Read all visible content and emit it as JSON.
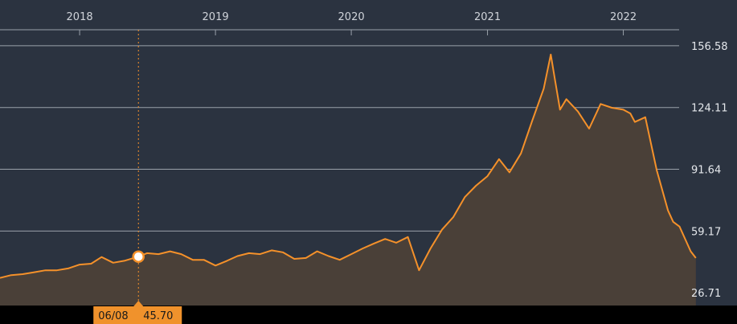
{
  "chart_data": {
    "type": "area",
    "title": "",
    "xlabel": "",
    "ylabel": "",
    "x_range": [
      "2017-06-01",
      "2022-05-31"
    ],
    "ylim": [
      20,
      165
    ],
    "grid": true,
    "x_ticks": [
      {
        "label": "2018",
        "date": "2018-01-01"
      },
      {
        "label": "2019",
        "date": "2019-01-01"
      },
      {
        "label": "2020",
        "date": "2020-01-01"
      },
      {
        "label": "2021",
        "date": "2021-01-01"
      },
      {
        "label": "2022",
        "date": "2022-01-01"
      }
    ],
    "y_ticks": [
      {
        "label": "26.71",
        "value": 26.71
      },
      {
        "label": "59.17",
        "value": 59.17
      },
      {
        "label": "91.64",
        "value": 91.64
      },
      {
        "label": "124.11",
        "value": 124.11
      },
      {
        "label": "156.58",
        "value": 156.58
      }
    ],
    "series": [
      {
        "color": "#f5912a",
        "points": [
          [
            "2017-06-01",
            34.5
          ],
          [
            "2017-07-01",
            36.0
          ],
          [
            "2017-08-01",
            36.5
          ],
          [
            "2017-09-01",
            37.5
          ],
          [
            "2017-10-01",
            38.5
          ],
          [
            "2017-11-01",
            38.5
          ],
          [
            "2017-12-01",
            39.5
          ],
          [
            "2018-01-01",
            41.5
          ],
          [
            "2018-02-01",
            42.0
          ],
          [
            "2018-03-01",
            45.5
          ],
          [
            "2018-04-01",
            42.5
          ],
          [
            "2018-05-01",
            43.5
          ],
          [
            "2018-06-08",
            45.7
          ],
          [
            "2018-07-01",
            47.5
          ],
          [
            "2018-08-01",
            47.0
          ],
          [
            "2018-09-01",
            48.5
          ],
          [
            "2018-10-01",
            47.0
          ],
          [
            "2018-11-01",
            44.0
          ],
          [
            "2018-12-01",
            44.0
          ],
          [
            "2019-01-01",
            41.0
          ],
          [
            "2019-02-01",
            43.5
          ],
          [
            "2019-03-01",
            46.0
          ],
          [
            "2019-04-01",
            47.5
          ],
          [
            "2019-05-01",
            47.0
          ],
          [
            "2019-06-01",
            49.0
          ],
          [
            "2019-07-01",
            48.0
          ],
          [
            "2019-08-01",
            44.5
          ],
          [
            "2019-09-01",
            45.0
          ],
          [
            "2019-10-01",
            48.5
          ],
          [
            "2019-11-01",
            46.0
          ],
          [
            "2019-12-01",
            44.0
          ],
          [
            "2020-01-01",
            47.0
          ],
          [
            "2020-02-01",
            50.0
          ],
          [
            "2020-03-01",
            52.5
          ],
          [
            "2020-04-01",
            55.0
          ],
          [
            "2020-05-01",
            53.0
          ],
          [
            "2020-06-01",
            56.0
          ],
          [
            "2020-07-01",
            38.5
          ],
          [
            "2020-08-01",
            50.0
          ],
          [
            "2020-09-01",
            60.0
          ],
          [
            "2020-10-01",
            66.5
          ],
          [
            "2020-11-01",
            77.0
          ],
          [
            "2020-12-01",
            83.0
          ],
          [
            "2021-01-01",
            88.0
          ],
          [
            "2021-02-01",
            97.0
          ],
          [
            "2021-03-01",
            90.0
          ],
          [
            "2021-04-01",
            100.0
          ],
          [
            "2021-05-01",
            117.0
          ],
          [
            "2021-06-01",
            134.0
          ],
          [
            "2021-06-20",
            152.0
          ],
          [
            "2021-07-01",
            139.0
          ],
          [
            "2021-07-15",
            123.0
          ],
          [
            "2021-08-01",
            128.5
          ],
          [
            "2021-09-01",
            122.0
          ],
          [
            "2021-10-01",
            113.0
          ],
          [
            "2021-11-01",
            126.0
          ],
          [
            "2021-12-01",
            124.0
          ],
          [
            "2022-01-01",
            123.0
          ],
          [
            "2022-01-20",
            121.0
          ],
          [
            "2022-02-01",
            116.5
          ],
          [
            "2022-03-01",
            119.0
          ],
          [
            "2022-04-01",
            91.0
          ],
          [
            "2022-05-01",
            70.0
          ],
          [
            "2022-05-15",
            64.0
          ],
          [
            "2022-06-01",
            61.5
          ],
          [
            "2022-07-01",
            48.5
          ],
          [
            "2022-07-15",
            45.0
          ]
        ]
      }
    ],
    "crosshair": {
      "date": "2018-06-08",
      "value": 45.7
    }
  },
  "tooltip": {
    "date_label": "06/08",
    "value_label": "45.70"
  },
  "colors": {
    "panel": "#2b3340",
    "grid": "#9aa1aa",
    "line": "#f5912a",
    "area": "#4a4038",
    "tooltip_bg": "#f0922c",
    "bottom_band": "#000000"
  }
}
